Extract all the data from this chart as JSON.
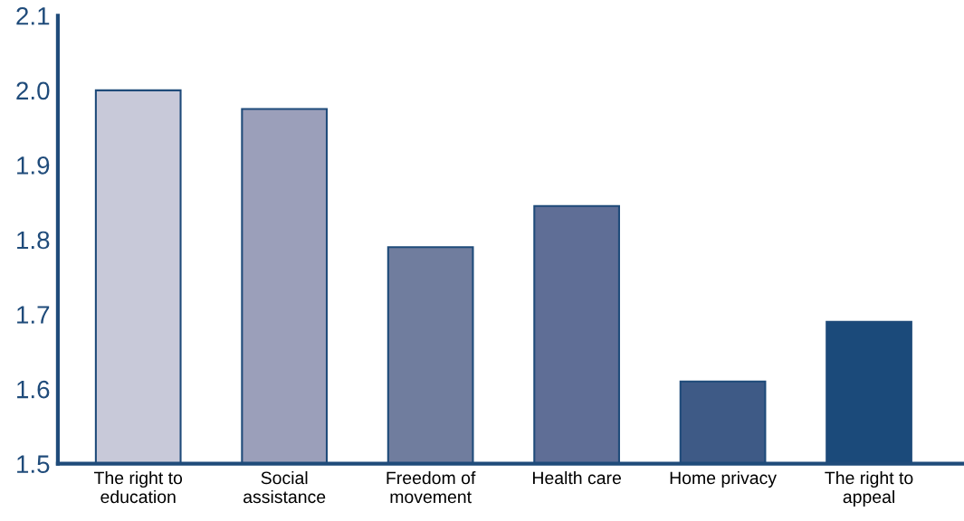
{
  "chart_data": {
    "type": "bar",
    "categories": [
      "The right to education",
      "Social assistance",
      "Freedom of movement",
      "Health care",
      "Home privacy",
      "The right to appeal"
    ],
    "values": [
      2.0,
      1.975,
      1.79,
      1.845,
      1.61,
      1.69
    ],
    "colors": [
      "#c8c9d9",
      "#9b9fba",
      "#707d9e",
      "#5f6e96",
      "#3e5a86",
      "#1b4a7a"
    ],
    "ylim": [
      1.5,
      2.1
    ],
    "yticks": [
      1.5,
      1.6,
      1.7,
      1.8,
      1.9,
      {
        "value": 2.0,
        "label": "2.0"
      },
      2.1
    ],
    "grid": false,
    "legend": false
  }
}
